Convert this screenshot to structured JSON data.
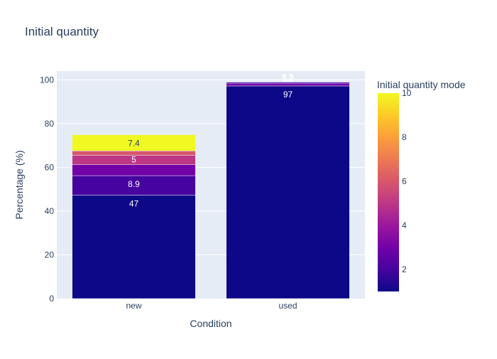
{
  "chart_data": {
    "type": "bar",
    "barmode": "stack",
    "title": "Initial quantity",
    "xlabel": "Condition",
    "ylabel": "Percentage (%)",
    "categories": [
      "new",
      "used"
    ],
    "ylim": [
      0,
      104
    ],
    "yticks": [
      0,
      20,
      40,
      60,
      80,
      100
    ],
    "grid": true,
    "colorbar": {
      "title": "Initial quantity mode",
      "range": [
        1,
        10
      ],
      "ticks": [
        2,
        4,
        6,
        8,
        10
      ]
    },
    "stacks": [
      {
        "category": "new",
        "segments": [
          {
            "mode": 1,
            "value": 47.3,
            "label": "47"
          },
          {
            "mode": 2,
            "value": 8.9,
            "label": "8.9"
          },
          {
            "mode": 3,
            "value": 5.0,
            "label": "5"
          },
          {
            "mode": 5,
            "value": 4.3,
            "label": ""
          },
          {
            "mode": 6,
            "value": 2.0,
            "label": ""
          },
          {
            "mode": 10,
            "value": 7.4,
            "label": "7.4"
          }
        ]
      },
      {
        "category": "used",
        "segments": [
          {
            "mode": 1,
            "value": 97.2,
            "label": "97"
          },
          {
            "mode": 3,
            "value": 1.2,
            "label": "1.2"
          },
          {
            "mode": 2,
            "value": 0.5,
            "label": "0.5"
          }
        ]
      }
    ]
  }
}
